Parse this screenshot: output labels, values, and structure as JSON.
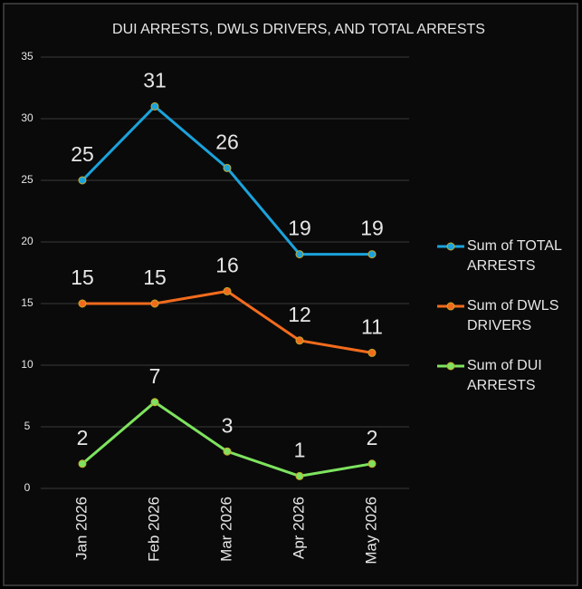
{
  "chart_data": {
    "type": "line",
    "title": "DUI ARRESTS, DWLS DRIVERS, AND TOTAL ARRESTS",
    "categories": [
      "Jan 2026",
      "Feb 2026",
      "Mar 2026",
      "Apr 2026",
      "May 2026"
    ],
    "series": [
      {
        "name": "Sum of TOTAL ARRESTS",
        "color": "#1aa3dc",
        "values": [
          25,
          31,
          26,
          19,
          19
        ]
      },
      {
        "name": "Sum of DWLS DRIVERS",
        "color": "#f26b1d",
        "values": [
          15,
          15,
          16,
          12,
          11
        ]
      },
      {
        "name": "Sum of DUI ARRESTS",
        "color": "#7ee35f",
        "values": [
          2,
          7,
          3,
          1,
          2
        ]
      }
    ],
    "ylim": [
      0,
      35
    ],
    "yticks": [
      0,
      5,
      10,
      15,
      20,
      25,
      30,
      35
    ],
    "grid": true,
    "legend": "right"
  }
}
